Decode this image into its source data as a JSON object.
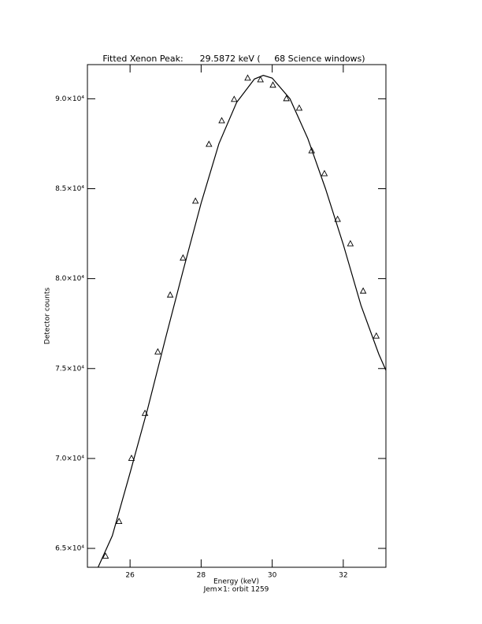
{
  "chart_data": {
    "type": "line",
    "title": "Fitted Xenon Peak:      29.5872 keV (     68 Science windows)",
    "x_label": "Energy (keV)",
    "subtitle": "Jem×1: orbit 1259",
    "y_label": "Detector counts",
    "xlim": [
      24.8,
      33.2
    ],
    "xticks": [
      26,
      28,
      30,
      32
    ],
    "ylim": [
      63950,
      91900
    ],
    "yticks": [
      {
        "value": 65000,
        "label": "6.5×10⁴"
      },
      {
        "value": 70000,
        "label": "7.0×10⁴"
      },
      {
        "value": 75000,
        "label": "7.5×10⁴"
      },
      {
        "value": 80000,
        "label": "8.0×10⁴"
      },
      {
        "value": 85000,
        "label": "8.5×10⁴"
      },
      {
        "value": 90000,
        "label": "9.0×10⁴"
      }
    ],
    "series": [
      {
        "style": "markers",
        "marker": "triangle",
        "color": "#000000",
        "x": [
          25.31,
          25.69,
          26.04,
          26.42,
          26.78,
          27.13,
          27.49,
          27.84,
          28.22,
          28.58,
          28.93,
          29.31,
          29.67,
          30.02,
          30.4,
          30.76,
          31.11,
          31.47,
          31.84,
          32.2,
          32.56,
          32.93
        ],
        "values": [
          64560,
          66490,
          70000,
          72500,
          75920,
          79080,
          81140,
          84300,
          87460,
          88770,
          89960,
          91140,
          91050,
          90750,
          90000,
          89470,
          87100,
          85830,
          83290,
          81930,
          79300,
          76800
        ]
      },
      {
        "style": "line",
        "color": "#000000",
        "x": [
          25.1,
          25.5,
          26.0,
          26.5,
          27.0,
          27.5,
          28.0,
          28.5,
          29.0,
          29.5,
          29.75,
          30.0,
          30.5,
          31.0,
          31.5,
          32.0,
          32.5,
          33.0,
          33.2
        ],
        "values": [
          63950,
          65700,
          69200,
          72800,
          76700,
          80500,
          84200,
          87500,
          89800,
          91100,
          91300,
          91150,
          90000,
          87800,
          85000,
          81900,
          78500,
          75800,
          74900
        ]
      }
    ]
  }
}
